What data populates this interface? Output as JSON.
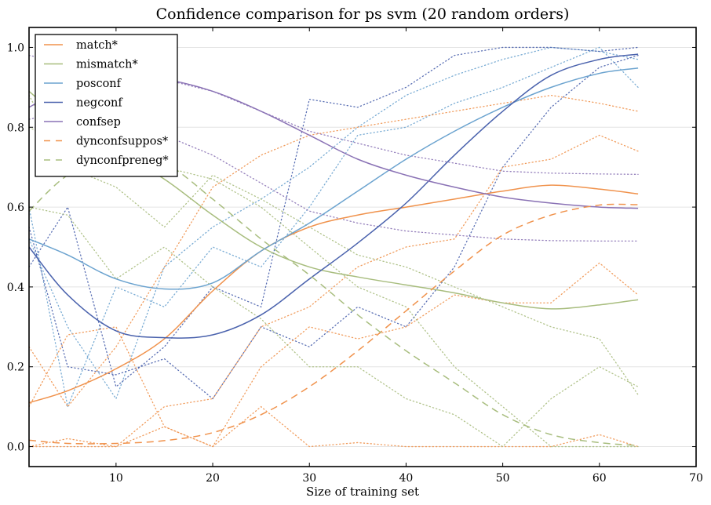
{
  "chart_data": {
    "type": "line",
    "title": "Confidence comparison for ps svm (20 random orders)",
    "xlabel": "Size of training set",
    "ylabel": "",
    "xlim": [
      1,
      70
    ],
    "ylim": [
      -0.05,
      1.05
    ],
    "xticks": [
      10,
      20,
      30,
      40,
      50,
      60,
      70
    ],
    "xtick_labels": [
      "10",
      "20",
      "30",
      "40",
      "50",
      "60",
      "70"
    ],
    "yticks": [
      0.0,
      0.2,
      0.4,
      0.6,
      0.8,
      1.0
    ],
    "ytick_labels": [
      "0.0",
      "0.2",
      "0.4",
      "0.6",
      "0.8",
      "1.0"
    ],
    "grid": "horizontal",
    "legend_position": "top-left",
    "x": [
      1,
      5,
      10,
      15,
      20,
      25,
      30,
      35,
      40,
      45,
      50,
      55,
      60,
      64
    ],
    "series": [
      {
        "name": "match*",
        "color": "#f0924c",
        "style": "solid",
        "values": [
          0.11,
          0.14,
          0.195,
          0.27,
          0.39,
          0.49,
          0.55,
          0.58,
          0.6,
          0.62,
          0.64,
          0.655,
          0.645,
          0.633
        ]
      },
      {
        "name": "mismatch*",
        "color": "#a8bd7e",
        "style": "solid",
        "values": [
          0.89,
          0.81,
          0.74,
          0.67,
          0.58,
          0.5,
          0.45,
          0.425,
          0.405,
          0.385,
          0.36,
          0.345,
          0.355,
          0.368
        ]
      },
      {
        "name": "posconf",
        "color": "#6ba3cf",
        "style": "solid",
        "values": [
          0.52,
          0.48,
          0.42,
          0.395,
          0.41,
          0.49,
          0.56,
          0.64,
          0.72,
          0.79,
          0.85,
          0.9,
          0.935,
          0.948
        ]
      },
      {
        "name": "negconf",
        "color": "#4a62ad",
        "style": "solid",
        "values": [
          0.5,
          0.38,
          0.29,
          0.273,
          0.28,
          0.33,
          0.42,
          0.51,
          0.61,
          0.73,
          0.84,
          0.93,
          0.97,
          0.983
        ]
      },
      {
        "name": "confsep",
        "color": "#8a72b5",
        "style": "solid",
        "values": [
          0.85,
          0.9,
          0.925,
          0.92,
          0.89,
          0.84,
          0.78,
          0.72,
          0.68,
          0.65,
          0.625,
          0.61,
          0.6,
          0.597
        ]
      },
      {
        "name": "dynconfsuppos*",
        "color": "#f0924c",
        "style": "dashed",
        "values": [
          0.016,
          0.008,
          0.008,
          0.015,
          0.035,
          0.08,
          0.15,
          0.24,
          0.34,
          0.44,
          0.53,
          0.58,
          0.605,
          0.606
        ]
      },
      {
        "name": "dynconfpreneg*",
        "color": "#a8bd7e",
        "style": "dashed",
        "values": [
          0.59,
          0.68,
          0.73,
          0.71,
          0.62,
          0.52,
          0.43,
          0.33,
          0.24,
          0.16,
          0.08,
          0.03,
          0.01,
          0.003
        ]
      }
    ],
    "background_traces": [
      {
        "name": "posconf-order-a",
        "color": "#6ba3cf",
        "values": [
          0.52,
          0.3,
          0.12,
          0.45,
          0.55,
          0.62,
          0.7,
          0.8,
          0.88,
          0.93,
          0.97,
          1.0,
          0.99,
          0.97
        ]
      },
      {
        "name": "posconf-order-b",
        "color": "#6ba3cf",
        "values": [
          0.6,
          0.1,
          0.4,
          0.35,
          0.5,
          0.45,
          0.6,
          0.78,
          0.8,
          0.86,
          0.9,
          0.95,
          1.0,
          0.9
        ]
      },
      {
        "name": "negconf-order-a",
        "color": "#4a62ad",
        "values": [
          0.55,
          0.2,
          0.18,
          0.22,
          0.12,
          0.3,
          0.25,
          0.35,
          0.3,
          0.45,
          0.7,
          0.85,
          0.95,
          0.98
        ]
      },
      {
        "name": "negconf-order-b",
        "color": "#4a62ad",
        "values": [
          0.45,
          0.6,
          0.15,
          0.25,
          0.4,
          0.35,
          0.87,
          0.85,
          0.9,
          0.98,
          1.0,
          1.0,
          0.99,
          1.0
        ]
      },
      {
        "name": "confsep-order-a",
        "color": "#8a72b5",
        "values": [
          0.98,
          0.96,
          0.95,
          0.92,
          0.89,
          0.84,
          0.79,
          0.76,
          0.73,
          0.71,
          0.69,
          0.685,
          0.683,
          0.682
        ]
      },
      {
        "name": "confsep-order-b",
        "color": "#8a72b5",
        "values": [
          0.82,
          0.84,
          0.8,
          0.78,
          0.73,
          0.66,
          0.59,
          0.56,
          0.54,
          0.53,
          0.52,
          0.516,
          0.515,
          0.515
        ]
      },
      {
        "name": "match-order-a",
        "color": "#f0924c",
        "values": [
          0.25,
          0.1,
          0.25,
          0.45,
          0.65,
          0.73,
          0.78,
          0.8,
          0.82,
          0.84,
          0.86,
          0.88,
          0.86,
          0.84
        ]
      },
      {
        "name": "match-order-b",
        "color": "#f0924c",
        "values": [
          0.0,
          0.0,
          0.0,
          0.1,
          0.12,
          0.3,
          0.35,
          0.45,
          0.5,
          0.52,
          0.7,
          0.72,
          0.78,
          0.74
        ]
      },
      {
        "name": "match-order-c",
        "color": "#f0924c",
        "values": [
          0.1,
          0.28,
          0.3,
          0.05,
          0.0,
          0.2,
          0.3,
          0.27,
          0.3,
          0.38,
          0.36,
          0.36,
          0.46,
          0.38
        ]
      },
      {
        "name": "match-order-d",
        "color": "#f0924c",
        "values": [
          0.0,
          0.02,
          0.0,
          0.05,
          0.0,
          0.1,
          0.0,
          0.01,
          0.0,
          0.0,
          0.0,
          0.0,
          0.03,
          0.0
        ]
      },
      {
        "name": "mismatch-order-a",
        "color": "#a8bd7e",
        "values": [
          0.88,
          0.7,
          0.65,
          0.55,
          0.68,
          0.62,
          0.55,
          0.48,
          0.45,
          0.4,
          0.35,
          0.3,
          0.27,
          0.13
        ]
      },
      {
        "name": "mismatch-order-b",
        "color": "#a8bd7e",
        "values": [
          0.6,
          0.58,
          0.42,
          0.5,
          0.4,
          0.32,
          0.2,
          0.2,
          0.12,
          0.08,
          0.0,
          0.12,
          0.2,
          0.15
        ]
      },
      {
        "name": "mismatch-order-c",
        "color": "#a8bd7e",
        "values": [
          0.8,
          0.75,
          0.72,
          0.7,
          0.67,
          0.6,
          0.5,
          0.4,
          0.35,
          0.2,
          0.1,
          0.0,
          0.0,
          0.0
        ]
      }
    ]
  }
}
